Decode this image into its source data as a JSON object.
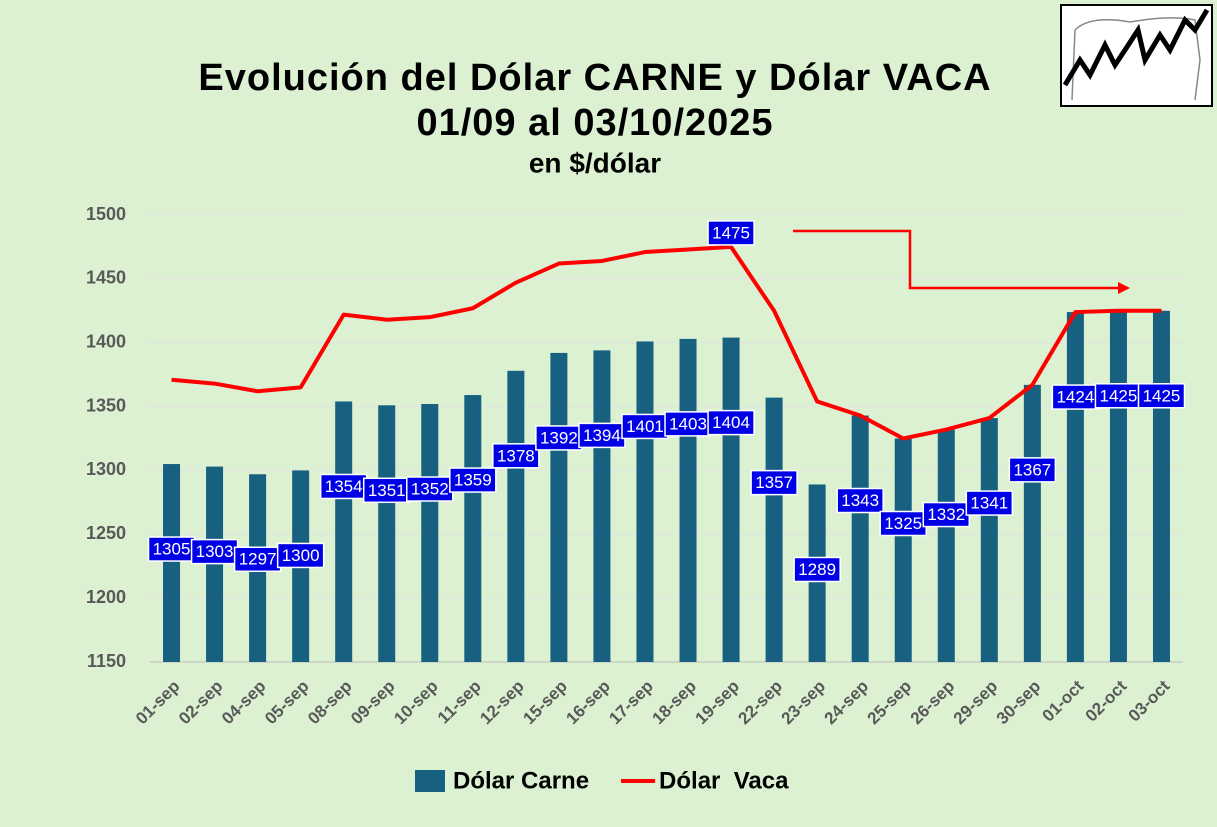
{
  "chart_data": {
    "type": "bar_line",
    "title": "Evolución del Dólar CARNE y Dólar VACA",
    "subtitle": "01/09 al 03/10/2025",
    "unit_label": "en $/dólar",
    "categories": [
      "01-sep",
      "02-sep",
      "04-sep",
      "05-sep",
      "08-sep",
      "09-sep",
      "10-sep",
      "11-sep",
      "12-sep",
      "15-sep",
      "16-sep",
      "17-sep",
      "18-sep",
      "19-sep",
      "22-sep",
      "23-sep",
      "24-sep",
      "25-sep",
      "26-sep",
      "29-sep",
      "30-sep",
      "01-oct",
      "02-oct",
      "03-oct"
    ],
    "series": [
      {
        "name": "Dólar Carne",
        "type": "bar",
        "color": "#17607f",
        "values": [
          1305,
          1303,
          1297,
          1300,
          1354,
          1351,
          1352,
          1359,
          1378,
          1392,
          1394,
          1401,
          1403,
          1404,
          1357,
          1289,
          1343,
          1325,
          1332,
          1341,
          1367,
          1424,
          1425,
          1425
        ]
      },
      {
        "name": "Dólar  Vaca",
        "type": "line",
        "color": "#ff0000",
        "values": [
          1371,
          1368,
          1362,
          1365,
          1422,
          1418,
          1420,
          1427,
          1447,
          1462,
          1464,
          1471,
          1473,
          1475,
          1425,
          1354,
          1343,
          1325,
          1332,
          1341,
          1367,
          1424,
          1425,
          1425
        ],
        "labeled_points": [
          13
        ]
      }
    ],
    "ylim": [
      1150,
      1500
    ],
    "yticks": [
      1150,
      1200,
      1250,
      1300,
      1350,
      1400,
      1450,
      1500
    ],
    "grid": true,
    "legend": "bottom"
  }
}
